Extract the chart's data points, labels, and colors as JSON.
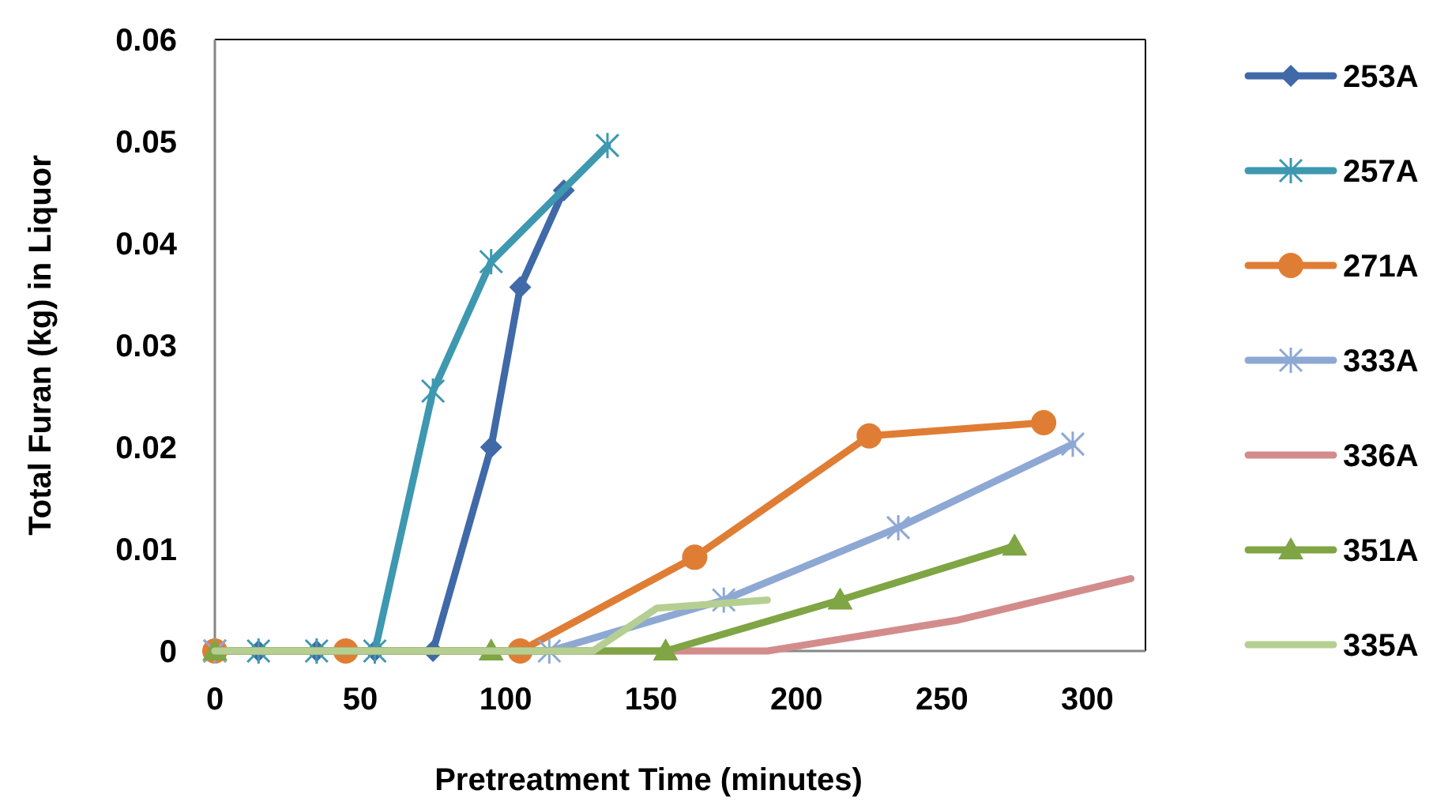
{
  "chart_data": {
    "type": "line",
    "xlabel": "Pretreatment Time (minutes)",
    "ylabel": "Total Furan (kg) in Liquor",
    "xlim": [
      0,
      320
    ],
    "xticks": [
      0,
      50,
      100,
      150,
      200,
      250,
      300
    ],
    "ylim": [
      0,
      0.06
    ],
    "yticks": [
      0,
      0.01,
      0.02,
      0.03,
      0.04,
      0.05,
      0.06
    ],
    "grid": false,
    "legend": "right",
    "line_style": "solid",
    "series": [
      {
        "name": "253A",
        "color": "#4069a8",
        "marker": "diamond",
        "x": [
          0,
          15,
          35,
          55,
          75,
          95,
          105,
          120
        ],
        "values": [
          0,
          0,
          0,
          0,
          0,
          0.02,
          0.0357,
          0.0452
        ]
      },
      {
        "name": "257A",
        "color": "#3d98b0",
        "marker": "cross",
        "x": [
          0,
          15,
          35,
          55,
          75,
          95,
          135
        ],
        "values": [
          0,
          0,
          0,
          0,
          0.0255,
          0.0382,
          0.0496
        ]
      },
      {
        "name": "271A",
        "color": "#e07d35",
        "marker": "circle",
        "x": [
          0,
          45,
          105,
          165,
          225,
          285
        ],
        "values": [
          0,
          0,
          0,
          0.0092,
          0.0211,
          0.0224
        ]
      },
      {
        "name": "333A",
        "color": "#8ea8d4",
        "marker": "cross",
        "x": [
          0,
          115,
          175,
          235,
          295
        ],
        "values": [
          0,
          0,
          0.005,
          0.0121,
          0.0203
        ]
      },
      {
        "name": "336A",
        "color": "#d38c8c",
        "marker": "none",
        "x": [
          0,
          155,
          190,
          255,
          315
        ],
        "values": [
          0,
          0,
          0,
          0.003,
          0.0071
        ]
      },
      {
        "name": "351A",
        "color": "#7fa544",
        "marker": "triangle",
        "x": [
          0,
          95,
          155,
          215,
          275
        ],
        "values": [
          0,
          0,
          0,
          0.005,
          0.0103
        ]
      },
      {
        "name": "335A",
        "color": "#b5cf92",
        "marker": "none",
        "x": [
          0,
          130,
          152,
          190
        ],
        "values": [
          0,
          0,
          0.0042,
          0.005
        ]
      }
    ]
  }
}
